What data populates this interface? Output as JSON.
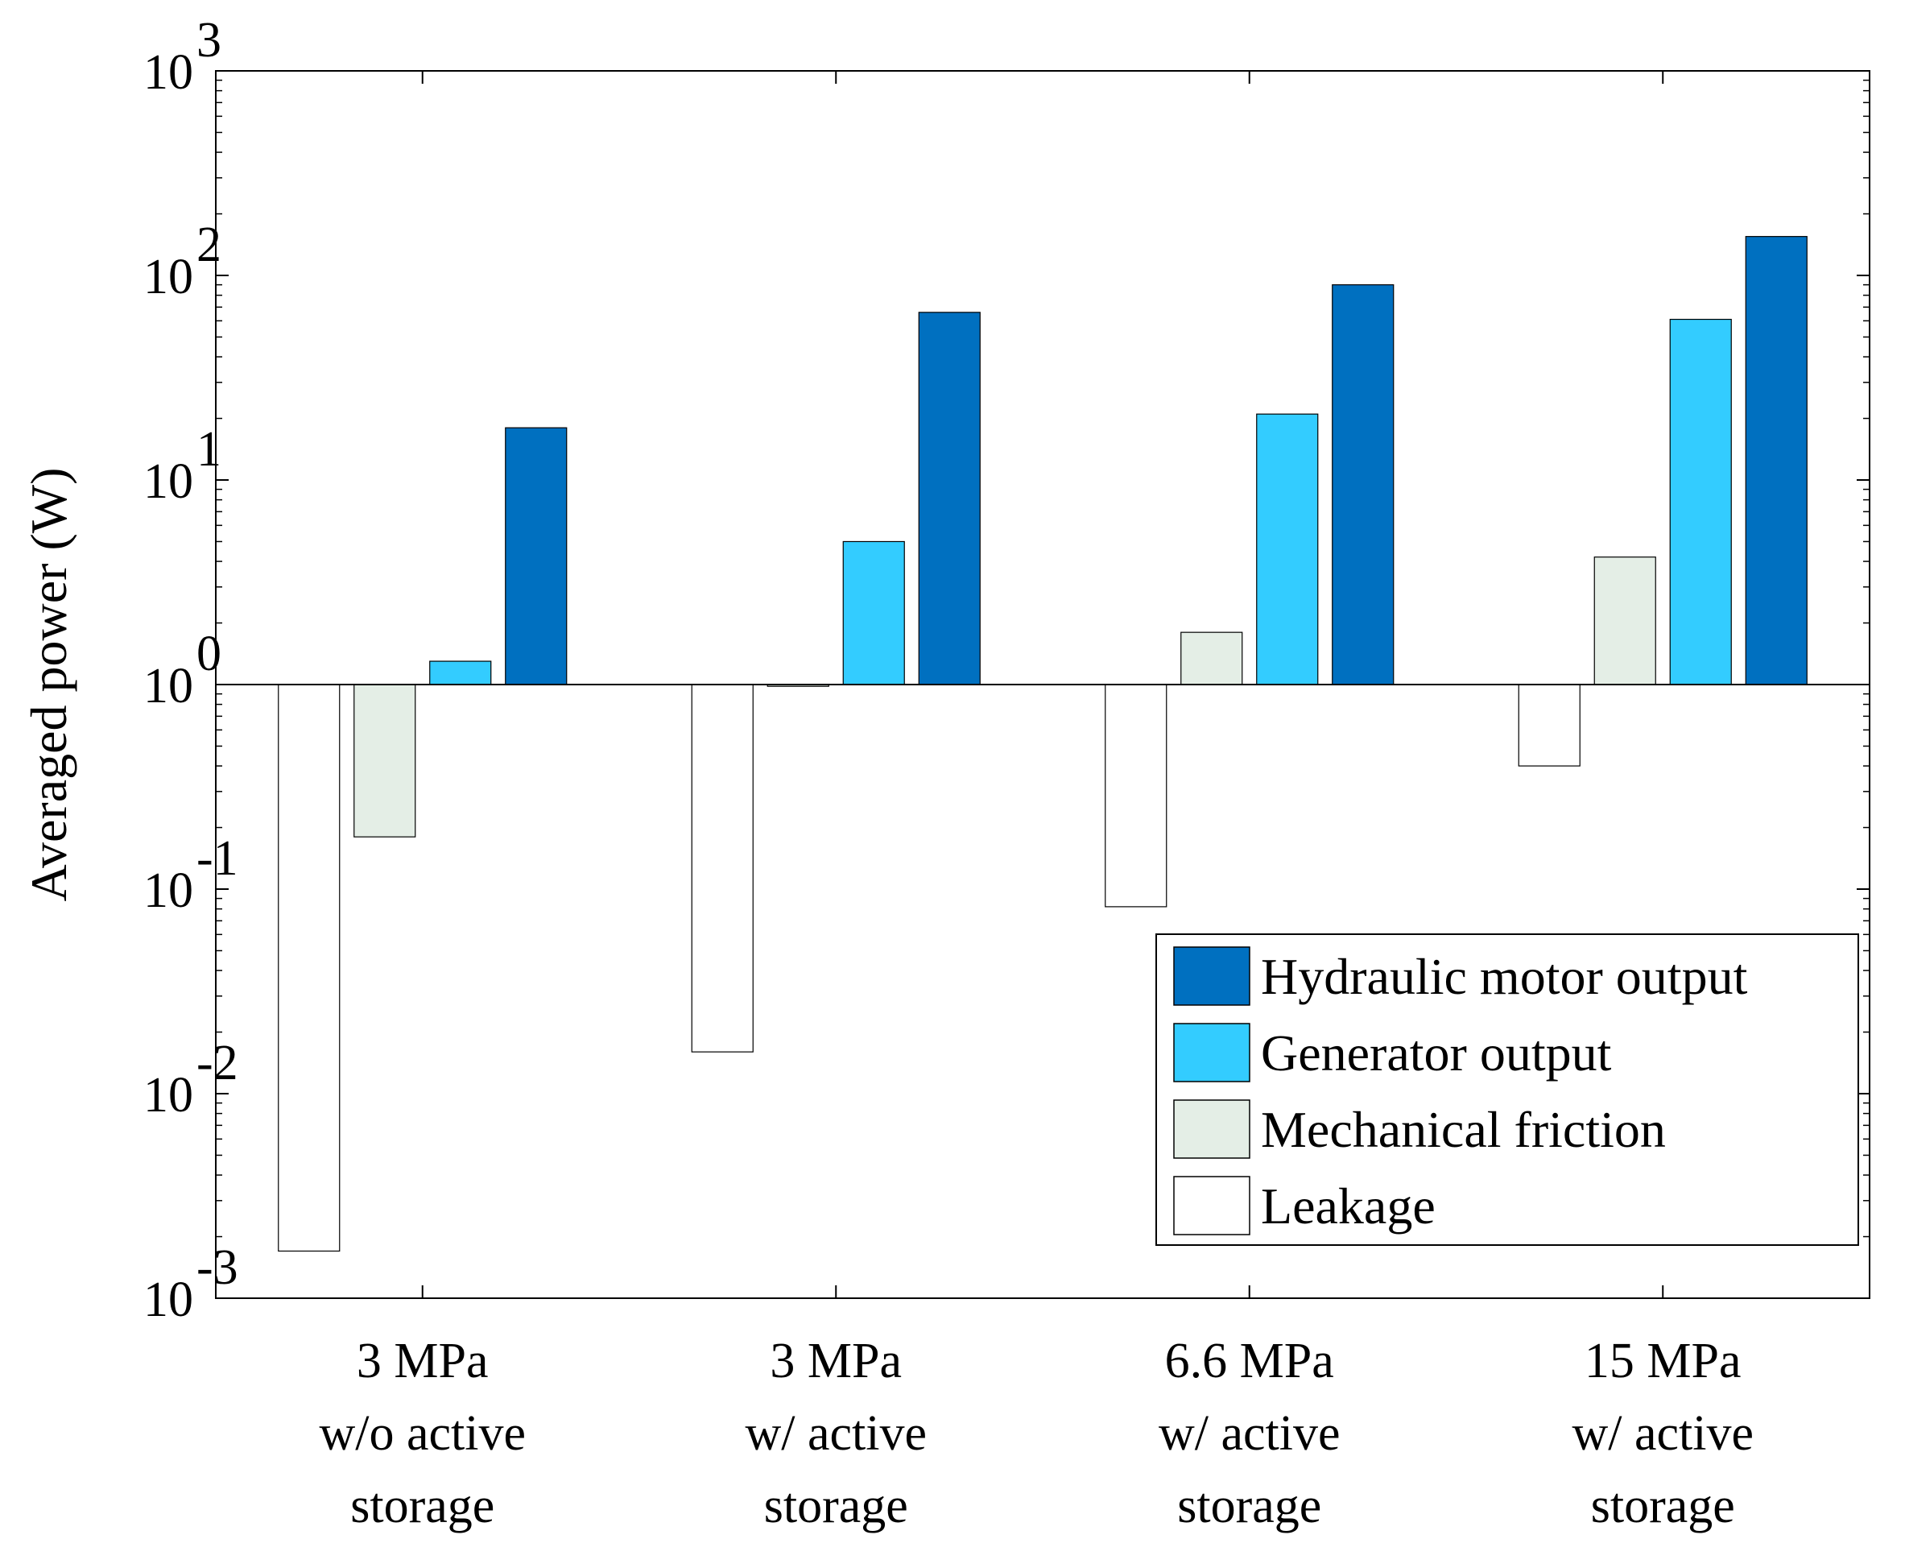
{
  "chart_data": {
    "type": "bar",
    "title": "",
    "xlabel": "",
    "ylabel": "Averaged power (W)",
    "yscale": "log",
    "ylim": [
      0.001,
      1000
    ],
    "baseline": 1,
    "y_ticks": [
      {
        "base": "10",
        "exp": "-3",
        "value": 0.001
      },
      {
        "base": "10",
        "exp": "-2",
        "value": 0.01
      },
      {
        "base": "10",
        "exp": "-1",
        "value": 0.1
      },
      {
        "base": "10",
        "exp": "0",
        "value": 1
      },
      {
        "base": "10",
        "exp": "1",
        "value": 10
      },
      {
        "base": "10",
        "exp": "2",
        "value": 100
      },
      {
        "base": "10",
        "exp": "3",
        "value": 1000
      }
    ],
    "categories": [
      [
        "3 MPa",
        "w/o active",
        "storage"
      ],
      [
        "3 MPa",
        "w/ active",
        "storage"
      ],
      [
        "6.6 MPa",
        "w/ active",
        "storage"
      ],
      [
        "15 MPa",
        "w/ active",
        "storage"
      ]
    ],
    "series": [
      {
        "name": "Leakage",
        "color": "#ffffff",
        "values": [
          0.0017,
          0.016,
          0.082,
          0.4
        ]
      },
      {
        "name": "Mechanical friction",
        "color": "#e4eee6",
        "values": [
          0.18,
          0.98,
          1.8,
          4.2
        ]
      },
      {
        "name": "Generator output",
        "color": "#33ccff",
        "values": [
          1.3,
          5.0,
          21,
          61
        ]
      },
      {
        "name": "Hydraulic motor output",
        "color": "#0070c0",
        "values": [
          18,
          66,
          90,
          155
        ]
      }
    ],
    "legend": {
      "position": "bottom-right",
      "order": [
        "Hydraulic motor output",
        "Generator output",
        "Mechanical friction",
        "Leakage"
      ]
    },
    "grid": false
  }
}
